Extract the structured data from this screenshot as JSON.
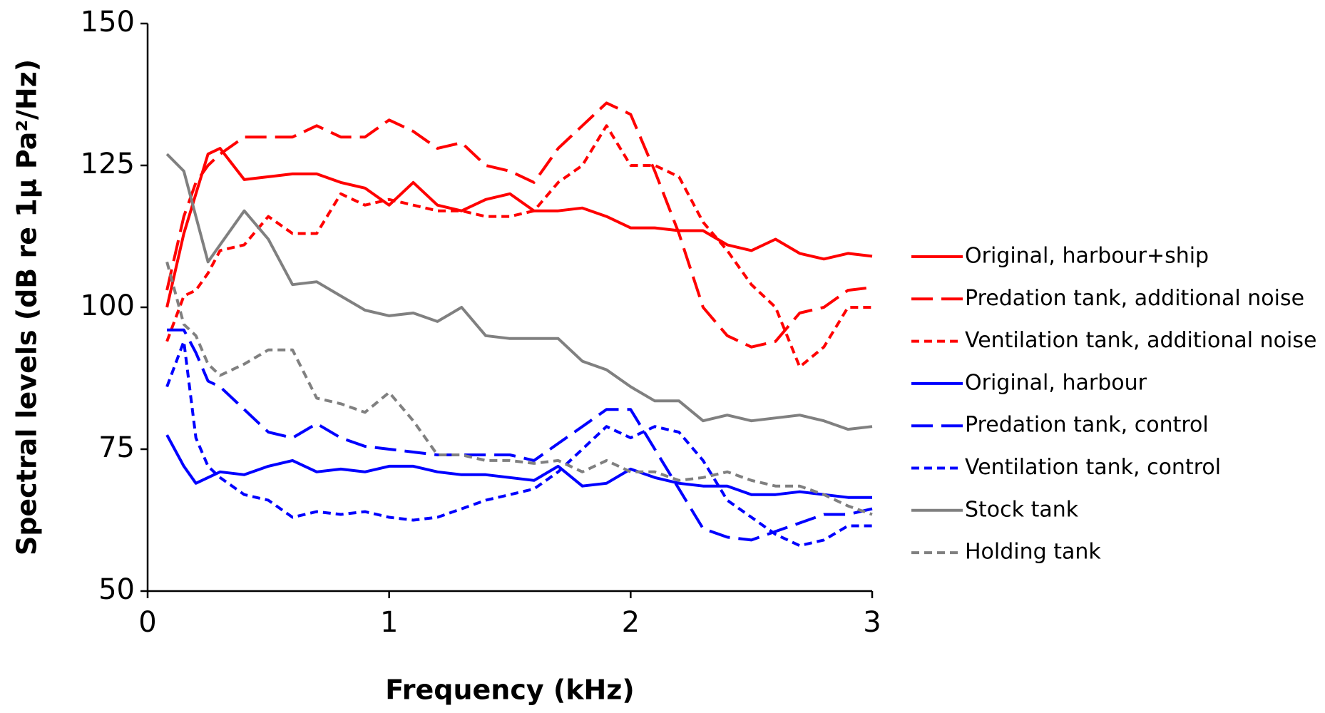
{
  "chart_data": {
    "type": "line",
    "x_label": "Frequency (kHz)",
    "y_label": "Spectral levels (dB re 1µ Pa²/Hz)",
    "x": [
      0.08,
      0.15,
      0.2,
      0.25,
      0.3,
      0.4,
      0.5,
      0.6,
      0.7,
      0.8,
      0.9,
      1.0,
      1.1,
      1.2,
      1.3,
      1.4,
      1.5,
      1.6,
      1.7,
      1.8,
      1.9,
      2.0,
      2.1,
      2.2,
      2.3,
      2.4,
      2.5,
      2.6,
      2.7,
      2.8,
      2.9,
      3.0
    ],
    "xlim": [
      0,
      3
    ],
    "xticks": [
      0,
      1,
      2,
      3
    ],
    "ylim": [
      50,
      150
    ],
    "yticks": [
      50,
      75,
      100,
      125,
      150
    ],
    "grid": false,
    "legend": "right",
    "series": [
      {
        "name": "Original, harbour+ship",
        "color": "#ff0000",
        "dash": "solid",
        "values": [
          100,
          113,
          120,
          127,
          128,
          122.5,
          123,
          123.5,
          123.5,
          122,
          121,
          118,
          122,
          118,
          117,
          119,
          120,
          117,
          117,
          117.5,
          116,
          114,
          114,
          113.5,
          113.5,
          111,
          110,
          112,
          109.5,
          108.5,
          109.5,
          109
        ]
      },
      {
        "name": "Predation tank, additional noise",
        "color": "#ff0000",
        "dash": "long",
        "values": [
          103,
          116,
          122,
          125,
          127,
          130,
          130,
          130,
          132,
          130,
          130,
          133,
          131,
          128,
          129,
          125,
          124,
          122,
          128,
          132,
          136,
          134,
          124,
          113,
          100,
          95,
          93,
          94,
          99,
          100,
          103,
          103.5
        ]
      },
      {
        "name": "Ventilation tank, additional noise",
        "color": "#ff0000",
        "dash": "short",
        "values": [
          94,
          102,
          103,
          106,
          110,
          111,
          116,
          113,
          113,
          120,
          118,
          119,
          118,
          117,
          117,
          116,
          116,
          117,
          122,
          125,
          132,
          125,
          125,
          123,
          115,
          110,
          104,
          100,
          89.5,
          93,
          100,
          100
        ]
      },
      {
        "name": "Original, harbour",
        "color": "#0000ff",
        "dash": "solid",
        "values": [
          77.5,
          72,
          69,
          70,
          71,
          70.5,
          72,
          73,
          71,
          71.5,
          71,
          72,
          72,
          71,
          70.5,
          70.5,
          70,
          69.5,
          72,
          68.5,
          69,
          71.5,
          70,
          69,
          68.5,
          68.5,
          67,
          67,
          67.5,
          67,
          66.5,
          66.5
        ]
      },
      {
        "name": "Predation tank, control",
        "color": "#0000ff",
        "dash": "long",
        "values": [
          96,
          96,
          92,
          87,
          86,
          82,
          78,
          77,
          79.5,
          77,
          75.5,
          75,
          74.5,
          74,
          74,
          74,
          74,
          73,
          76,
          79,
          82,
          82,
          75,
          68,
          61,
          59.5,
          59,
          60.5,
          62,
          63.5,
          63.5,
          64.5
        ]
      },
      {
        "name": "Ventilation tank, control",
        "color": "#0000ff",
        "dash": "short",
        "values": [
          86,
          94,
          77,
          72,
          70,
          67,
          66,
          63,
          64,
          63.5,
          64,
          63,
          62.5,
          63,
          64.5,
          66,
          67,
          68,
          71,
          75,
          79,
          77,
          79,
          78,
          73,
          66,
          63,
          60,
          58,
          59,
          61.5,
          61.5
        ]
      },
      {
        "name": "Stock tank",
        "color": "#808080",
        "dash": "solid",
        "values": [
          127,
          124,
          116,
          108,
          111,
          117,
          112,
          104,
          104.5,
          102,
          99.5,
          98.5,
          99,
          97.5,
          100,
          95,
          94.5,
          94.5,
          94.5,
          90.5,
          89,
          86,
          83.5,
          83.5,
          80,
          81,
          80,
          80.5,
          81,
          80,
          78.5,
          79
        ]
      },
      {
        "name": "Holding tank",
        "color": "#808080",
        "dash": "short",
        "values": [
          108,
          97,
          95,
          90,
          88,
          90,
          92.5,
          92.5,
          84,
          83,
          81.5,
          85,
          80,
          74,
          74,
          73,
          73,
          72.5,
          73,
          71,
          73,
          71,
          71,
          69.5,
          70,
          71,
          69.5,
          68.5,
          68.5,
          67,
          65,
          63.5
        ]
      }
    ]
  }
}
